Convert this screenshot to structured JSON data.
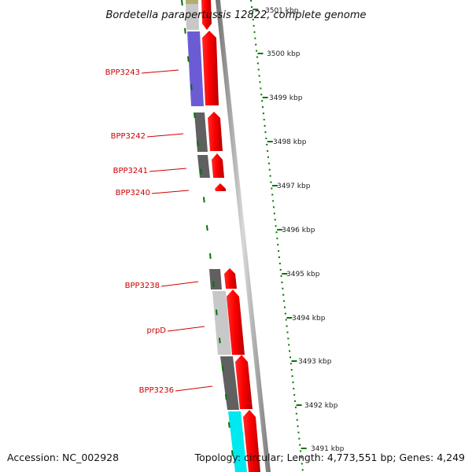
{
  "title": "Bordetella parapertussis 12822, complete genome",
  "accession": "Accession: NC_002928",
  "stats": "Topology: circular; Length: 4,773,551 bp; Genes: 4,249",
  "ticks": [
    "3501 kbp",
    "3500 kbp",
    "3499 kbp",
    "3498 kbp",
    "3497 kbp",
    "3496 kbp",
    "3495 kbp",
    "3494 kbp",
    "3493 kbp",
    "3492 kbp",
    "3491 kbp"
  ],
  "gene_labels": [
    "BPP3243",
    "BPP3242",
    "BPP3241",
    "BPP3240",
    "BPP3238",
    "prpD",
    "BPP3236"
  ],
  "colors": {
    "backbone": "#8c8c8c",
    "cds_forward": "#ff0000",
    "tick": "#006600",
    "label": "#cc0000",
    "feature_dark": "#606060",
    "feature_light": "#c8c8c8",
    "feature_purple": "#6b5cd6",
    "feature_cyan": "#00e8f0",
    "feature_olive": "#b5ad6a"
  }
}
